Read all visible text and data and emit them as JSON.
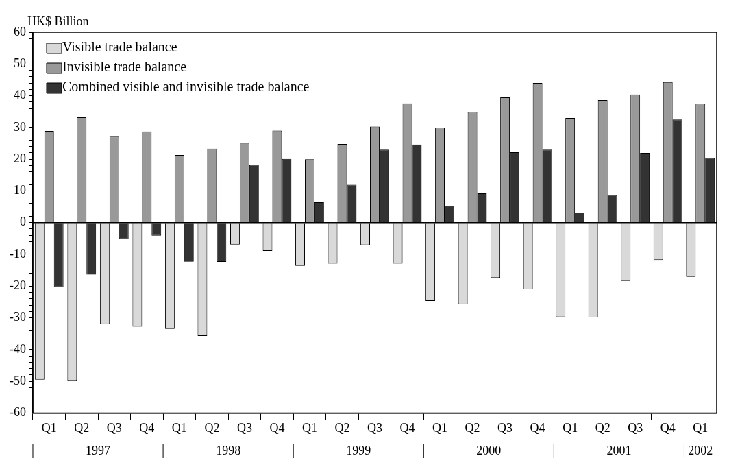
{
  "chart_data": {
    "type": "bar",
    "ylabel": "HK$ Billion",
    "categories": [
      "Q1",
      "Q2",
      "Q3",
      "Q4",
      "Q1",
      "Q2",
      "Q3",
      "Q4",
      "Q1",
      "Q2",
      "Q3",
      "Q4",
      "Q1",
      "Q2",
      "Q3",
      "Q4",
      "Q1",
      "Q2",
      "Q3",
      "Q4",
      "Q1"
    ],
    "series": [
      {
        "name": "Visible trade balance",
        "color": "#d9d9d9",
        "values": [
          -49.5,
          -49.8,
          -32,
          -32.8,
          -33.5,
          -35.7,
          -6.9,
          -8.9,
          -13.6,
          -12.9,
          -7.1,
          -12.9,
          -24.7,
          -25.7,
          -17.4,
          -21,
          -29.8,
          -29.9,
          -18.4,
          -11.8,
          -17.1
        ]
      },
      {
        "name": "Invisible trade balance",
        "color": "#999999",
        "values": [
          28.9,
          33.2,
          27.1,
          28.7,
          21.3,
          23.3,
          25.1,
          29,
          20,
          24.8,
          30.3,
          37.6,
          29.9,
          34.9,
          39.5,
          44,
          33,
          38.6,
          40.4,
          44.3,
          37.5
        ]
      },
      {
        "name": "Combined visible and invisible trade balance",
        "color": "#333333",
        "values": [
          -20.3,
          -16.4,
          -5.2,
          -4.1,
          -12.3,
          -12.4,
          18.2,
          20.1,
          6.4,
          11.9,
          23,
          24.6,
          5.2,
          9.2,
          22.2,
          23,
          3.2,
          8.7,
          22,
          32.5,
          20.4
        ]
      }
    ],
    "ylim": [
      -60,
      60
    ],
    "yticks": [
      -60,
      {
        "value": -58,
        "label": null
      },
      {
        "value": -56,
        "label": null
      },
      {
        "value": -54,
        "label": null
      },
      {
        "value": -52,
        "label": null
      },
      -50,
      {
        "value": -48,
        "label": null
      },
      {
        "value": -46,
        "label": null
      },
      {
        "value": -44,
        "label": null
      },
      {
        "value": -42,
        "label": null
      },
      -40,
      {
        "value": -38,
        "label": null
      },
      {
        "value": -36,
        "label": null
      },
      {
        "value": -34,
        "label": null
      },
      {
        "value": -32,
        "label": null
      },
      -30,
      {
        "value": -28,
        "label": null
      },
      {
        "value": -26,
        "label": null
      },
      {
        "value": -24,
        "label": null
      },
      {
        "value": -22,
        "label": null
      },
      -20,
      {
        "value": -18,
        "label": null
      },
      {
        "value": -16,
        "label": null
      },
      {
        "value": -14,
        "label": null
      },
      {
        "value": -12,
        "label": null
      },
      -10,
      {
        "value": -8,
        "label": null
      },
      {
        "value": -6,
        "label": null
      },
      {
        "value": -4,
        "label": null
      },
      {
        "value": -2,
        "label": null
      },
      0,
      {
        "value": 2,
        "label": null
      },
      {
        "value": 4,
        "label": null
      },
      {
        "value": 6,
        "label": null
      },
      {
        "value": 8,
        "label": null
      },
      10,
      {
        "value": 12,
        "label": null
      },
      {
        "value": 14,
        "label": null
      },
      {
        "value": 16,
        "label": null
      },
      {
        "value": 18,
        "label": null
      },
      20,
      {
        "value": 22,
        "label": null
      },
      {
        "value": 24,
        "label": null
      },
      {
        "value": 26,
        "label": null
      },
      {
        "value": 28,
        "label": null
      },
      30,
      {
        "value": 32,
        "label": null
      },
      {
        "value": 34,
        "label": null
      },
      {
        "value": 36,
        "label": null
      },
      {
        "value": 38,
        "label": null
      },
      40,
      {
        "value": 42,
        "label": null
      },
      {
        "value": 44,
        "label": null
      },
      {
        "value": 46,
        "label": null
      },
      {
        "value": 48,
        "label": null
      },
      50,
      {
        "value": 52,
        "label": null
      },
      {
        "value": 54,
        "label": null
      },
      {
        "value": 56,
        "label": null
      },
      {
        "value": 58,
        "label": null
      },
      60
    ],
    "annotations": [
      "1997",
      "1998",
      "1999",
      "2000",
      "2001",
      "2002"
    ],
    "legend": "top left"
  }
}
